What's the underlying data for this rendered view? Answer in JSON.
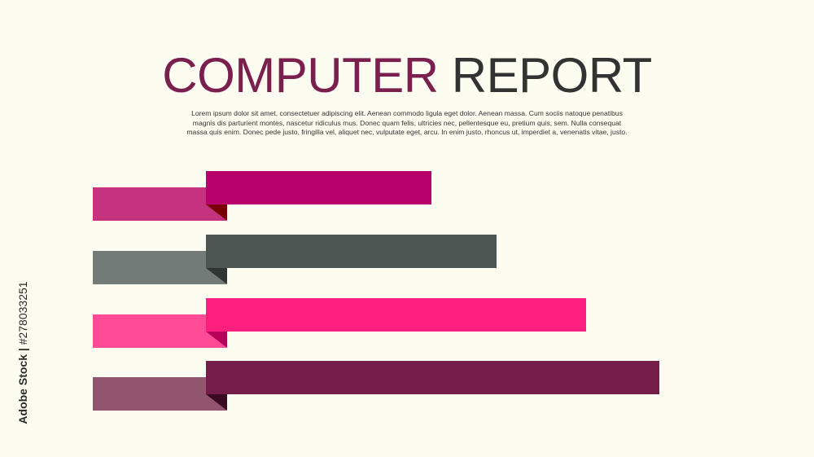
{
  "header": {
    "title_word1": "COMPUTER",
    "title_word2": "REPORT",
    "description": "Lorem ipsum dolor sit amet, consectetuer adipiscing elit. Aenean commodo ligula eget dolor. Aenean massa. Cum sociis natoque penatibus magnis dis parturient montes, nascetur ridiculus mus. Donec quam felis, ultricies nec, pellentesque eu, pretium quis, sem. Nulla consequat massa quis enim. Donec pede justo, fringilla vel, aliquet nec, vulputate eget, arcu. In enim justo, rhoncus ut, imperdiet a, venenatis vitae, justo."
  },
  "watermark": {
    "brand": "Adobe Stock",
    "separator": "|",
    "id": "#278033251"
  },
  "chart_data": {
    "type": "bar",
    "orientation": "horizontal",
    "values": [
      0.53,
      0.61,
      0.72,
      0.81
    ],
    "series": [
      {
        "values": [
          0.53
        ],
        "main_color": "#b8006a",
        "tab_color": "#c5337f",
        "fold_color": "#7a0000"
      },
      {
        "values": [
          0.61
        ],
        "main_color": "#4b5552",
        "tab_color": "#737b78",
        "fold_color": "#2e3533"
      },
      {
        "values": [
          0.72
        ],
        "main_color": "#ff1f7f",
        "tab_color": "#ff4a96",
        "fold_color": "#b8005a"
      },
      {
        "values": [
          0.81
        ],
        "main_color": "#731d48",
        "tab_color": "#925570",
        "fold_color": "#3a0a22"
      }
    ],
    "title": "",
    "xlabel": "",
    "ylabel": "",
    "grid": false,
    "legend": "none"
  }
}
